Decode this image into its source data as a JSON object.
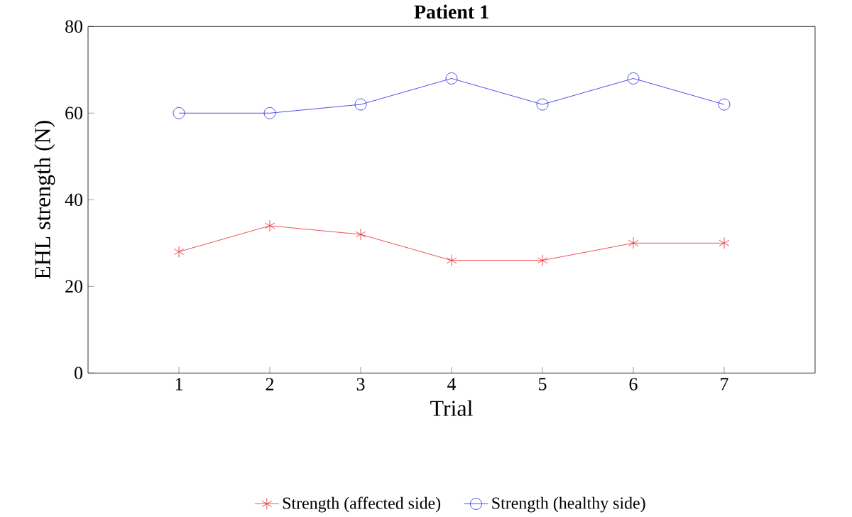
{
  "chart_data": {
    "type": "line",
    "title": "Patient 1",
    "xlabel": "Trial",
    "ylabel": "EHL strength (N)",
    "x": [
      1,
      2,
      3,
      4,
      5,
      6,
      7
    ],
    "series": [
      {
        "name": "Strength (affected side)",
        "color": "#e8262f",
        "marker": "cross",
        "values": [
          28,
          34,
          32,
          26,
          26,
          30,
          30
        ]
      },
      {
        "name": "Strength (healthy side)",
        "color": "#2424e0",
        "marker": "circle",
        "values": [
          60,
          60,
          62,
          68,
          62,
          68,
          62
        ]
      }
    ],
    "xlim": [
      0,
      8
    ],
    "xticks": [
      1,
      2,
      3,
      4,
      5,
      6,
      7
    ],
    "ylim": [
      0,
      80
    ],
    "yticks": [
      0,
      20,
      40,
      60,
      80
    ],
    "grid": false,
    "legend": "bottom",
    "line_style": "solid"
  }
}
